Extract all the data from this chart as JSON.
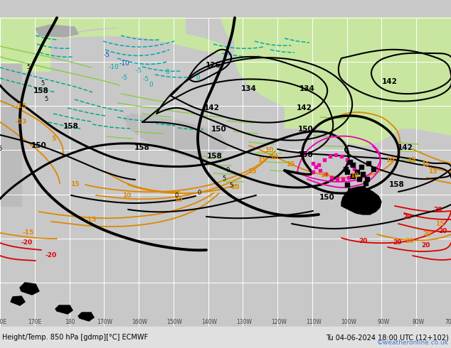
{
  "title_left": "Height/Temp. 850 hPa [gdmp][°C] ECMWF",
  "title_right": "Tu 04-06-2024 18:00 UTC (12+102)",
  "copyright": "©weatheronline.co.uk",
  "bg_ocean": "#c8c8c8",
  "bg_land_green": "#c8e6a0",
  "bg_land_light": "#d8eeaa",
  "bg_white_area": "#e8e8e8",
  "color_black": "#000000",
  "color_orange": "#dd8800",
  "color_red": "#dd0000",
  "color_cyan": "#00aaaa",
  "color_teal": "#00aa88",
  "color_green_contour": "#88cc44",
  "color_pink": "#ee00aa",
  "color_blue": "#0055cc",
  "color_grid": "#ffffff",
  "color_bottom_bar": "#e0e0e0",
  "color_copyright": "#4477cc",
  "figsize": [
    6.34,
    4.9
  ],
  "dpi": 100
}
